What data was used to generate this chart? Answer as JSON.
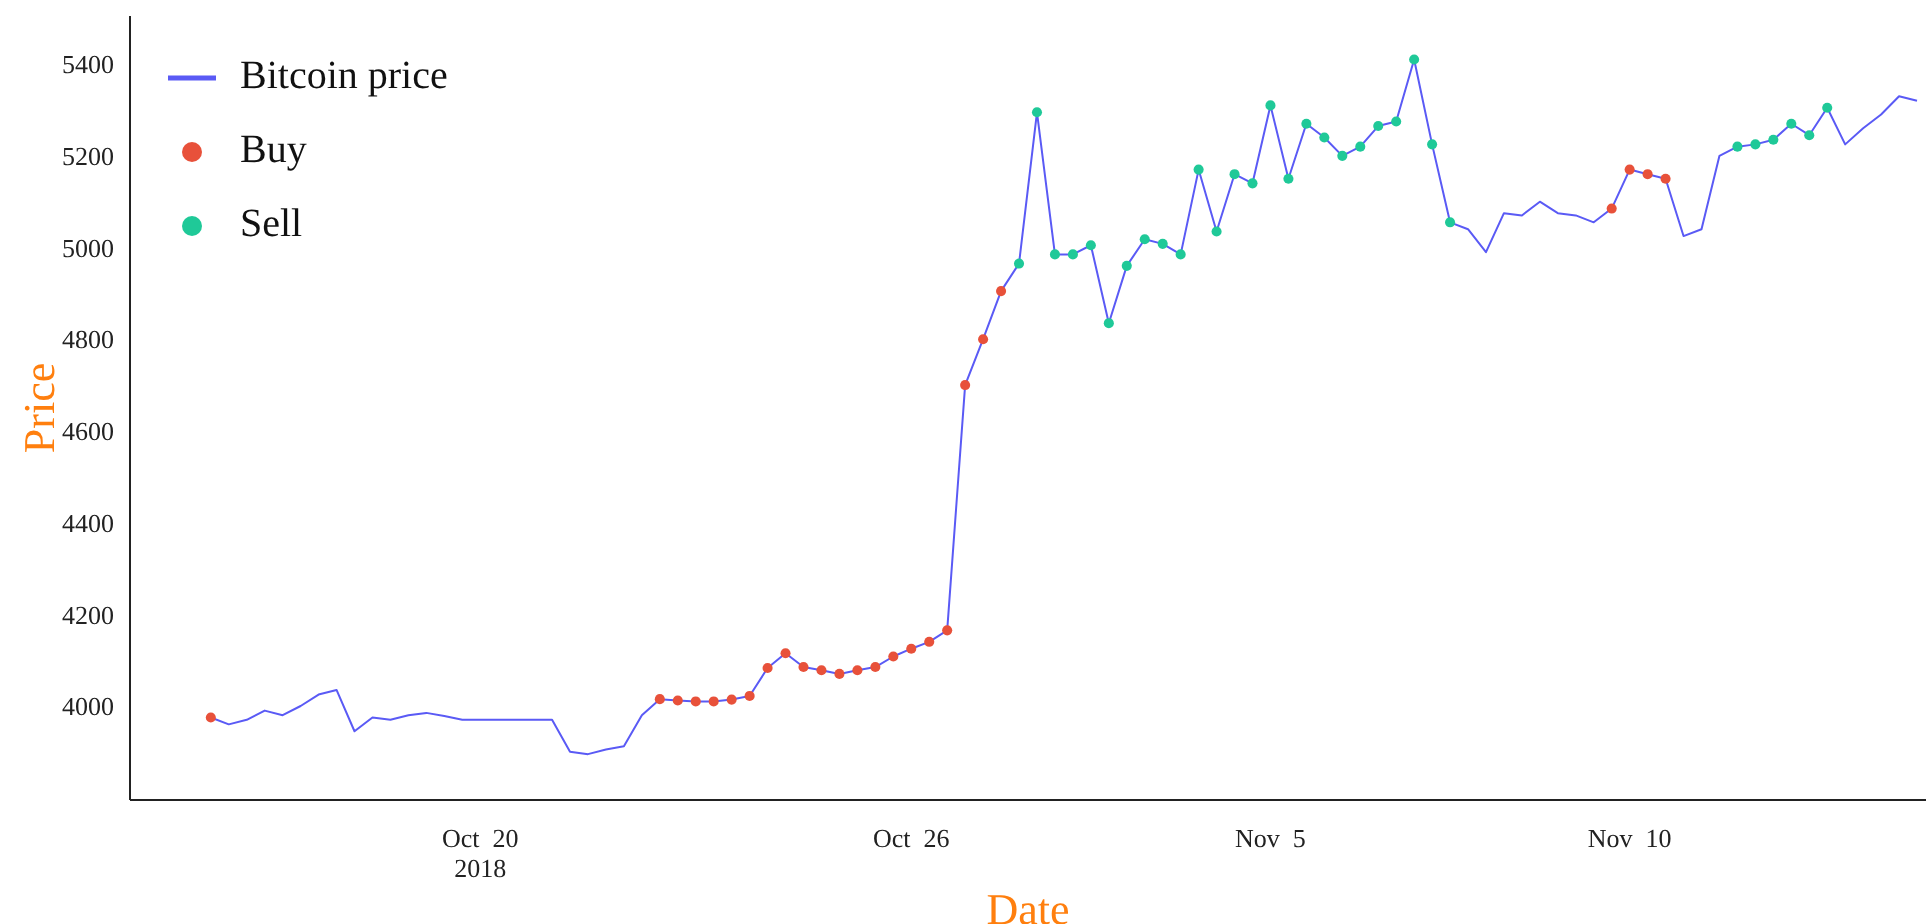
{
  "chart_data": {
    "type": "line",
    "xlabel": "Date",
    "ylabel": "Price",
    "ylim": [
      3795,
      5505
    ],
    "categories": [
      null,
      null,
      null,
      null,
      null,
      null,
      null,
      null,
      null,
      null,
      null,
      null,
      null,
      null,
      null,
      null,
      null,
      null,
      null,
      "Oct  20\n2018",
      null,
      null,
      null,
      null,
      null,
      null,
      null,
      null,
      null,
      null,
      null,
      null,
      null,
      null,
      null,
      null,
      null,
      null,
      null,
      null,
      null,
      null,
      null,
      "Oct  26",
      null,
      null,
      null,
      null,
      null,
      null,
      null,
      null,
      null,
      null,
      null,
      null,
      null,
      null,
      null,
      null,
      null,
      null,
      null,
      "Nov  5",
      null,
      null,
      null,
      null,
      null,
      null,
      null,
      null,
      null,
      null,
      null,
      null,
      null,
      null,
      null,
      null,
      null,
      null,
      null,
      "Nov  10",
      null,
      null,
      null,
      null,
      null,
      null,
      null,
      null,
      null,
      null,
      null,
      null,
      null,
      null,
      null,
      null
    ],
    "yticks": [
      4000,
      4200,
      4400,
      4600,
      4800,
      5000,
      5200,
      5400
    ],
    "legend": "top left",
    "line_style": "solid",
    "series": [
      {
        "name": "Bitcoin price",
        "color": "#5a5af5",
        "marker": "none",
        "values": [
          null,
          null,
          null,
          null,
          3975,
          3960,
          3970,
          3990,
          3980,
          4000,
          4025,
          4035,
          3945,
          3975,
          3970,
          3980,
          3985,
          3978,
          3970,
          3970,
          3970,
          3970,
          3970,
          3970,
          3900,
          3895,
          3905,
          3912,
          3980,
          4015,
          4012,
          4010,
          4010,
          4014,
          4022,
          4083,
          4115,
          4085,
          4078,
          4070,
          4078,
          4085,
          4108,
          4125,
          4140,
          4165,
          4700,
          4800,
          4905,
          4965,
          5295,
          4985,
          4985,
          5005,
          4835,
          4960,
          5018,
          5008,
          4985,
          5170,
          5035,
          5160,
          5140,
          5310,
          5150,
          5270,
          5240,
          5200,
          5220,
          5265,
          5275,
          5410,
          5225,
          5055,
          5040,
          4990,
          5075,
          5070,
          5100,
          5075,
          5070,
          5055,
          5085,
          5170,
          5160,
          5150,
          5025,
          5040,
          5200,
          5220,
          5225,
          5235,
          5270,
          5245,
          5305,
          5225,
          5260,
          5290,
          5330,
          5320
        ]
      },
      {
        "name": "Buy",
        "type": "scatter",
        "color": "#e8513a",
        "marker": "circle",
        "values": [
          null,
          null,
          null,
          null,
          3975,
          null,
          null,
          null,
          null,
          null,
          null,
          null,
          null,
          null,
          null,
          null,
          null,
          null,
          null,
          null,
          null,
          null,
          null,
          null,
          null,
          null,
          null,
          null,
          null,
          4015,
          4012,
          4010,
          4010,
          4014,
          4022,
          4083,
          4115,
          4085,
          4078,
          4070,
          4078,
          4085,
          4108,
          4125,
          4140,
          4165,
          4700,
          4800,
          4905,
          null,
          null,
          null,
          null,
          null,
          null,
          null,
          null,
          null,
          null,
          null,
          null,
          null,
          null,
          null,
          null,
          null,
          null,
          null,
          null,
          null,
          null,
          null,
          null,
          null,
          null,
          null,
          null,
          null,
          null,
          null,
          null,
          null,
          5085,
          5170,
          5160,
          5150,
          null,
          null,
          null,
          null,
          null,
          null,
          null,
          null,
          null,
          null,
          null,
          null,
          null,
          null
        ]
      },
      {
        "name": "Sell",
        "type": "scatter",
        "color": "#1fc998",
        "marker": "circle",
        "values": [
          null,
          null,
          null,
          null,
          null,
          null,
          null,
          null,
          null,
          null,
          null,
          null,
          null,
          null,
          null,
          null,
          null,
          null,
          null,
          null,
          null,
          null,
          null,
          null,
          null,
          null,
          null,
          null,
          null,
          null,
          null,
          null,
          null,
          null,
          null,
          null,
          null,
          null,
          null,
          null,
          null,
          null,
          null,
          null,
          null,
          null,
          null,
          null,
          null,
          4965,
          5295,
          4985,
          4985,
          5005,
          4835,
          4960,
          5018,
          5008,
          4985,
          5170,
          5035,
          5160,
          5140,
          5310,
          5150,
          5270,
          5240,
          5200,
          5220,
          5265,
          5275,
          5410,
          5225,
          5055,
          null,
          null,
          null,
          null,
          null,
          null,
          null,
          null,
          null,
          null,
          null,
          null,
          null,
          null,
          null,
          5220,
          5225,
          5235,
          5270,
          5245,
          5305,
          null,
          null,
          null,
          null,
          null
        ]
      }
    ]
  }
}
